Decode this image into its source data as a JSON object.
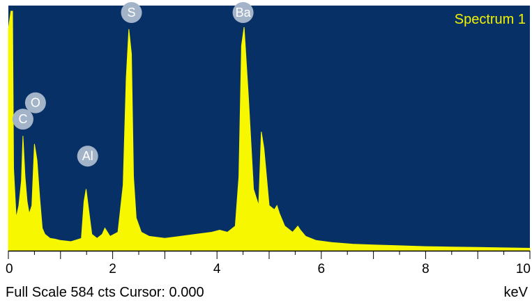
{
  "chart_data": {
    "type": "line",
    "title": "Spectrum 1",
    "xlabel": "keV",
    "xlim": [
      0,
      10
    ],
    "x_ticks": [
      0,
      2,
      4,
      6,
      8,
      10
    ],
    "full_scale_cts": 584,
    "series": [
      {
        "x": [
          0.0,
          0.05,
          0.08,
          0.1,
          0.15,
          0.2,
          0.25,
          0.28,
          0.32,
          0.36,
          0.4,
          0.45,
          0.5,
          0.55,
          0.6,
          0.65,
          0.7,
          0.8,
          0.9,
          1.0,
          1.2,
          1.4,
          1.45,
          1.49,
          1.53,
          1.6,
          1.7,
          1.8,
          1.85,
          1.95,
          2.1,
          2.2,
          2.26,
          2.31,
          2.36,
          2.4,
          2.45,
          2.55,
          2.7,
          3.0,
          3.3,
          3.6,
          3.9,
          4.05,
          4.2,
          4.35,
          4.42,
          4.47,
          4.52,
          4.6,
          4.7,
          4.8,
          4.85,
          4.9,
          5.0,
          5.1,
          5.15,
          5.2,
          5.3,
          5.45,
          5.55,
          5.6,
          5.7,
          5.9,
          6.2,
          6.6,
          7.0,
          7.5,
          8.0,
          8.5,
          9.0,
          9.5,
          10.0
        ],
        "values": [
          540,
          584,
          584,
          200,
          80,
          110,
          170,
          280,
          180,
          120,
          90,
          110,
          260,
          220,
          130,
          55,
          40,
          30,
          28,
          25,
          22,
          30,
          120,
          150,
          110,
          40,
          30,
          40,
          55,
          35,
          45,
          160,
          420,
          540,
          480,
          180,
          80,
          45,
          35,
          30,
          35,
          40,
          45,
          50,
          45,
          60,
          180,
          500,
          545,
          380,
          150,
          110,
          290,
          250,
          110,
          100,
          110,
          90,
          60,
          45,
          60,
          50,
          35,
          25,
          20,
          16,
          14,
          12,
          10,
          9,
          8,
          7,
          6
        ]
      }
    ],
    "peak_labels": [
      {
        "label": "C",
        "x": 0.28,
        "y": 290
      },
      {
        "label": "O",
        "x": 0.52,
        "y": 330
      },
      {
        "label": "Al",
        "x": 1.52,
        "y": 200
      },
      {
        "label": "S",
        "x": 2.36,
        "y": 550
      },
      {
        "label": "Ba",
        "x": 4.5,
        "y": 550
      }
    ]
  },
  "status": {
    "text": "Full Scale 584 cts Cursor: 0.000",
    "unit": "keV"
  },
  "colors": {
    "background": "#073166",
    "spectrum": "#f7f700",
    "label_bubble": "#a4b4c8"
  }
}
